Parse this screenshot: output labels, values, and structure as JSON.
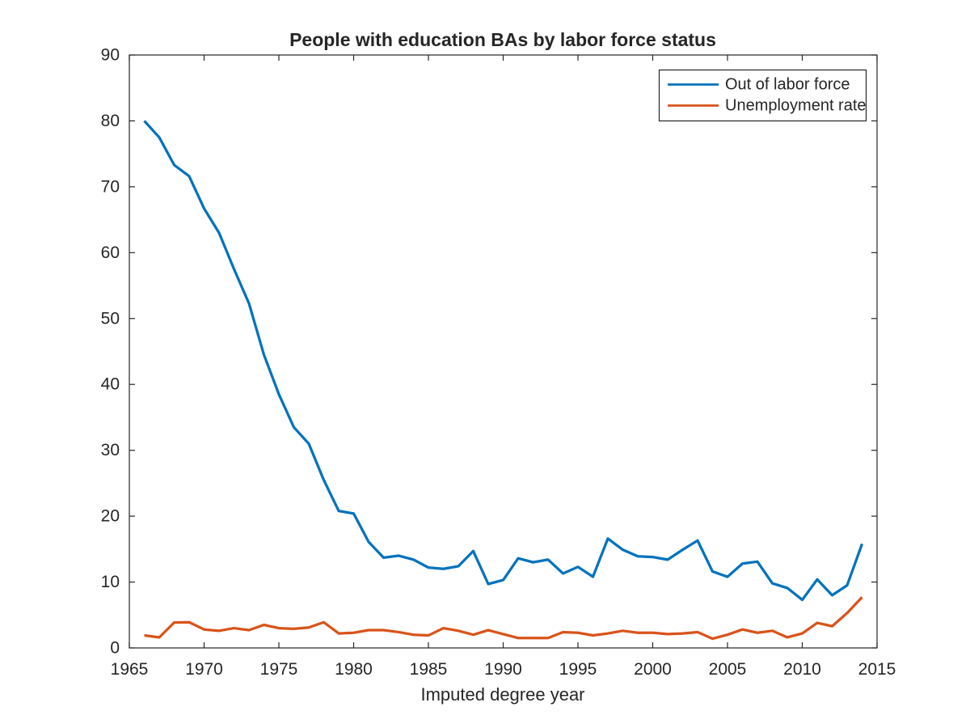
{
  "figure": {
    "background": "#ffffff",
    "axis_color": "#262626"
  },
  "chart_data": {
    "type": "line",
    "title": "People with education BAs by labor force status",
    "xlabel": "Imputed degree year",
    "ylabel": "",
    "xlim": [
      1965,
      2015
    ],
    "ylim": [
      0,
      90
    ],
    "x_ticks": [
      1965,
      1970,
      1975,
      1980,
      1985,
      1990,
      1995,
      2000,
      2005,
      2010,
      2015
    ],
    "y_ticks": [
      0,
      10,
      20,
      30,
      40,
      50,
      60,
      70,
      80,
      90
    ],
    "grid": false,
    "legend_position": "top-right",
    "x": [
      1966,
      1967,
      1968,
      1969,
      1970,
      1971,
      1972,
      1973,
      1974,
      1975,
      1976,
      1977,
      1978,
      1979,
      1980,
      1981,
      1982,
      1983,
      1984,
      1985,
      1986,
      1987,
      1988,
      1989,
      1990,
      1991,
      1992,
      1993,
      1994,
      1995,
      1996,
      1997,
      1998,
      1999,
      2000,
      2001,
      2002,
      2003,
      2004,
      2005,
      2006,
      2007,
      2008,
      2009,
      2010,
      2011,
      2012,
      2013,
      2014
    ],
    "series": [
      {
        "name": "Out of labor force",
        "color": "#0072BD",
        "values": [
          80,
          77.5,
          73.3,
          71.6,
          66.7,
          63,
          57.5,
          52.3,
          44.5,
          38.5,
          33.5,
          31,
          25.5,
          20.8,
          20.4,
          16.1,
          13.7,
          14,
          13.4,
          12.2,
          12,
          12.4,
          14.7,
          9.7,
          10.3,
          13.6,
          13,
          13.4,
          11.3,
          12.3,
          10.8,
          16.6,
          14.9,
          13.9,
          13.8,
          13.4,
          14.9,
          16.3,
          11.6,
          10.8,
          12.8,
          13.1,
          9.8,
          9.1,
          7.3,
          10.4,
          8,
          9.5,
          15.8
        ]
      },
      {
        "name": "Unemployment rate",
        "color": "#D95319",
        "values": [
          1.9,
          1.6,
          3.85,
          3.9,
          2.8,
          2.6,
          3.0,
          2.7,
          3.5,
          3.0,
          2.9,
          3.1,
          3.9,
          2.2,
          2.3,
          2.7,
          2.7,
          2.4,
          2.0,
          1.9,
          3.0,
          2.6,
          2.0,
          2.7,
          2.1,
          1.5,
          1.5,
          1.5,
          2.4,
          2.3,
          1.9,
          2.2,
          2.6,
          2.3,
          2.3,
          2.1,
          2.2,
          2.4,
          1.4,
          2.0,
          2.8,
          2.3,
          2.6,
          1.6,
          2.2,
          3.8,
          3.3,
          5.3,
          7.7
        ]
      }
    ]
  }
}
